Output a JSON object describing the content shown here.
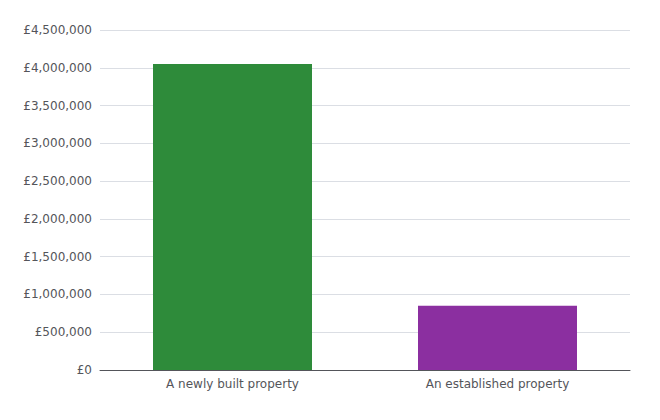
{
  "chart_data": {
    "type": "bar",
    "categories": [
      "A newly built property",
      "An established property"
    ],
    "values": [
      4050000,
      850000
    ],
    "colors": [
      "#2e8b3a",
      "#8b2fa0"
    ],
    "ylim": [
      0,
      4500000
    ],
    "yticks": [
      {
        "value": 0,
        "label": "£0"
      },
      {
        "value": 500000,
        "label": "£500,000"
      },
      {
        "value": 1000000,
        "label": "£1,000,000"
      },
      {
        "value": 1500000,
        "label": "£1,500,000"
      },
      {
        "value": 2000000,
        "label": "£2,000,000"
      },
      {
        "value": 2500000,
        "label": "£2,500,000"
      },
      {
        "value": 3000000,
        "label": "£3,000,000"
      },
      {
        "value": 3500000,
        "label": "£3,500,000"
      },
      {
        "value": 4000000,
        "label": "£4,000,000"
      },
      {
        "value": 4500000,
        "label": "£4,500,000"
      }
    ],
    "grid": true
  }
}
